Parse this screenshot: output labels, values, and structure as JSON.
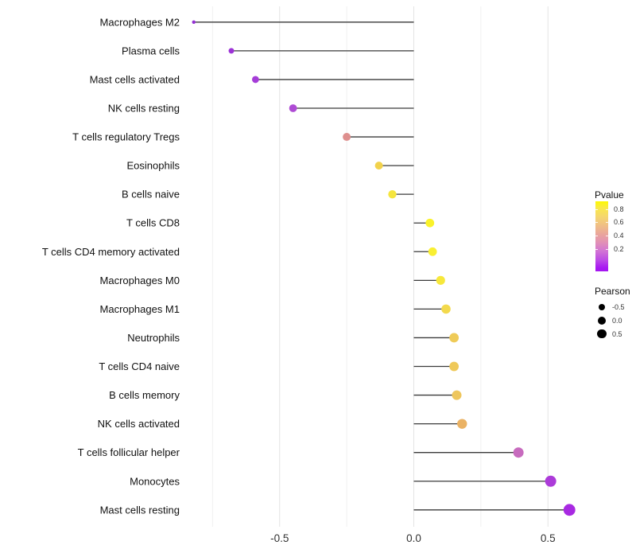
{
  "chart_data": {
    "type": "lollipop",
    "orientation": "horizontal",
    "title": "",
    "xlabel": "",
    "ylabel": "",
    "x_ticks": [
      -0.5,
      0.0,
      0.5
    ],
    "x_tick_labels": [
      "-0.5",
      "0.0",
      "0.5"
    ],
    "x_minor_ticks": [
      -0.75,
      -0.25,
      0.25
    ],
    "xlim": [
      -0.87,
      0.65
    ],
    "grid": "vertical-major-and-minor",
    "categories": [
      "Macrophages M2",
      "Plasma cells",
      "Mast cells activated",
      "NK cells resting",
      "T cells regulatory  Tregs",
      "Eosinophils",
      "B cells naive",
      "T cells CD8",
      "T cells CD4 memory activated",
      "Macrophages M0",
      "Macrophages M1",
      "Neutrophils",
      "T cells CD4 naive",
      "B cells memory",
      "NK cells activated",
      "T cells follicular helper",
      "Monocytes",
      "Mast cells resting"
    ],
    "points": [
      {
        "label": "Macrophages M2",
        "pearson": -0.82,
        "pvalue_estimated": 0.02,
        "color": "#9430D3",
        "radius_px": 2.2
      },
      {
        "label": "Plasma cells",
        "pearson": -0.68,
        "pvalue_estimated": 0.06,
        "color": "#9C32D6",
        "radius_px": 3.5
      },
      {
        "label": "Mast cells activated",
        "pearson": -0.59,
        "pvalue_estimated": 0.09,
        "color": "#A53CD8",
        "radius_px": 4.4
      },
      {
        "label": "NK cells resting",
        "pearson": -0.45,
        "pvalue_estimated": 0.15,
        "color": "#AE4BD4",
        "radius_px": 4.9
      },
      {
        "label": "T cells regulatory  Tregs",
        "pearson": -0.25,
        "pvalue_estimated": 0.5,
        "color": "#DE8F8E",
        "radius_px": 5.0
      },
      {
        "label": "Eosinophils",
        "pearson": -0.13,
        "pvalue_estimated": 0.7,
        "color": "#F2D24C",
        "radius_px": 5.0
      },
      {
        "label": "B cells naive",
        "pearson": -0.08,
        "pvalue_estimated": 0.78,
        "color": "#F5E53E",
        "radius_px": 5.2
      },
      {
        "label": "T cells CD8",
        "pearson": 0.06,
        "pvalue_estimated": 0.85,
        "color": "#FAF22A",
        "radius_px": 5.4
      },
      {
        "label": "T cells CD4 memory activated",
        "pearson": 0.07,
        "pvalue_estimated": 0.83,
        "color": "#F9EF32",
        "radius_px": 5.4
      },
      {
        "label": "Macrophages M0",
        "pearson": 0.1,
        "pvalue_estimated": 0.8,
        "color": "#F7E83B",
        "radius_px": 5.6
      },
      {
        "label": "Macrophages M1",
        "pearson": 0.12,
        "pvalue_estimated": 0.73,
        "color": "#F3D94C",
        "radius_px": 5.8
      },
      {
        "label": "Neutrophils",
        "pearson": 0.15,
        "pvalue_estimated": 0.68,
        "color": "#EFCB58",
        "radius_px": 5.9
      },
      {
        "label": "T cells CD4 naive",
        "pearson": 0.15,
        "pvalue_estimated": 0.67,
        "color": "#EFC95A",
        "radius_px": 5.9
      },
      {
        "label": "B cells memory",
        "pearson": 0.16,
        "pvalue_estimated": 0.66,
        "color": "#EEC65D",
        "radius_px": 6.0
      },
      {
        "label": "NK cells activated",
        "pearson": 0.18,
        "pvalue_estimated": 0.6,
        "color": "#EAB264",
        "radius_px": 6.2
      },
      {
        "label": "T cells follicular helper",
        "pearson": 0.39,
        "pvalue_estimated": 0.28,
        "color": "#C76BBE",
        "radius_px": 6.5
      },
      {
        "label": "Monocytes",
        "pearson": 0.51,
        "pvalue_estimated": 0.1,
        "color": "#AC3BD9",
        "radius_px": 7.0
      },
      {
        "label": "Mast cells resting",
        "pearson": 0.58,
        "pvalue_estimated": 0.07,
        "color": "#A829E2",
        "radius_px": 7.4
      }
    ],
    "legend": {
      "color": {
        "title": "Pvalue",
        "position": "right",
        "ticks": [
          "0.8",
          "0.6",
          "0.4",
          "0.2"
        ],
        "gradient_top_hex": "#FDF802",
        "gradient_bottom_hex": "#A416F0"
      },
      "size": {
        "title": "Pearson",
        "labels": [
          "-0.5",
          "0.0",
          "0.5"
        ],
        "dot_color": "#000000"
      }
    },
    "colors": {
      "stem": "#3A3A3A",
      "grid_major": "#E3E3E3",
      "grid_minor": "#F1F1F1",
      "axis_text": "#333333",
      "category_text": "#111111"
    }
  }
}
